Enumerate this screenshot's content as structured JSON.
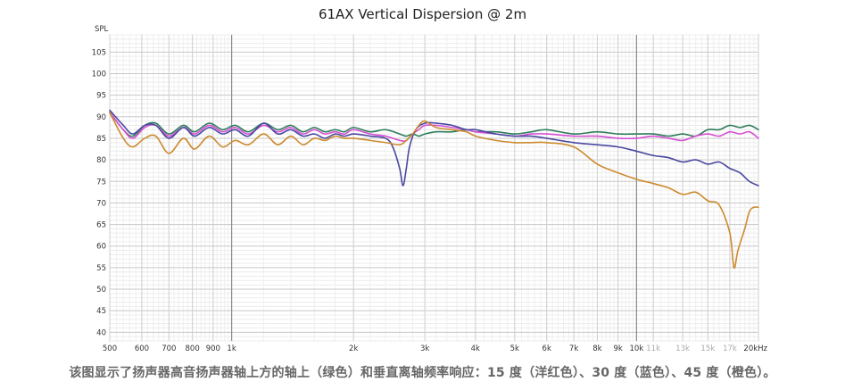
{
  "caption": "该图显示了扬声器高音扬声器轴上方的轴上（绿色）和垂直离轴频率响应：15 度（洋红色）、30 度（蓝色）、45 度（橙色）。",
  "chart_data": {
    "type": "line",
    "title": "61AX Vertical Dispersion @ 2m",
    "ylabel": "SPL",
    "xlabel": "",
    "x_scale": "log",
    "xlim": [
      500,
      20000
    ],
    "ylim": [
      38,
      109
    ],
    "grid": true,
    "y_ticks": [
      40,
      45,
      50,
      55,
      60,
      65,
      70,
      75,
      80,
      85,
      90,
      95,
      100,
      105
    ],
    "x_ticks": [
      {
        "v": 500,
        "label": "500",
        "light": false
      },
      {
        "v": 600,
        "label": "600",
        "light": false
      },
      {
        "v": 700,
        "label": "700",
        "light": false
      },
      {
        "v": 800,
        "label": "800",
        "light": false
      },
      {
        "v": 900,
        "label": "900",
        "light": false
      },
      {
        "v": 1000,
        "label": "1k",
        "light": false
      },
      {
        "v": 2000,
        "label": "2k",
        "light": false
      },
      {
        "v": 3000,
        "label": "3k",
        "light": false
      },
      {
        "v": 4000,
        "label": "4k",
        "light": false
      },
      {
        "v": 5000,
        "label": "5k",
        "light": false
      },
      {
        "v": 6000,
        "label": "6k",
        "light": false
      },
      {
        "v": 7000,
        "label": "7k",
        "light": false
      },
      {
        "v": 8000,
        "label": "8k",
        "light": false
      },
      {
        "v": 9000,
        "label": "9k",
        "light": false
      },
      {
        "v": 10000,
        "label": "10k",
        "light": false
      },
      {
        "v": 11000,
        "label": "11k",
        "light": true
      },
      {
        "v": 13000,
        "label": "13k",
        "light": true
      },
      {
        "v": 15000,
        "label": "15k",
        "light": true
      },
      {
        "v": 17000,
        "label": "17k",
        "light": true
      },
      {
        "v": 20000,
        "label": "20kHz",
        "light": false
      }
    ],
    "series": [
      {
        "color": "#2e7d5b",
        "points": [
          [
            500,
            91
          ],
          [
            540,
            87
          ],
          [
            570,
            85.5
          ],
          [
            610,
            88
          ],
          [
            650,
            88.5
          ],
          [
            700,
            86
          ],
          [
            760,
            88
          ],
          [
            810,
            86.5
          ],
          [
            880,
            88.5
          ],
          [
            950,
            87
          ],
          [
            1020,
            88
          ],
          [
            1100,
            86.5
          ],
          [
            1200,
            88.5
          ],
          [
            1300,
            87
          ],
          [
            1400,
            88
          ],
          [
            1500,
            86.5
          ],
          [
            1600,
            87.5
          ],
          [
            1700,
            86.5
          ],
          [
            1800,
            87
          ],
          [
            1900,
            86.5
          ],
          [
            2000,
            87.5
          ],
          [
            2200,
            86.5
          ],
          [
            2400,
            87
          ],
          [
            2600,
            86
          ],
          [
            2700,
            85.5
          ],
          [
            2800,
            86
          ],
          [
            2900,
            85.5
          ],
          [
            3000,
            86
          ],
          [
            3200,
            86.5
          ],
          [
            3500,
            86.5
          ],
          [
            3800,
            87
          ],
          [
            4000,
            86.5
          ],
          [
            4500,
            86.5
          ],
          [
            5000,
            86
          ],
          [
            5500,
            86.5
          ],
          [
            6000,
            87
          ],
          [
            7000,
            86
          ],
          [
            8000,
            86.5
          ],
          [
            9000,
            86
          ],
          [
            10000,
            86
          ],
          [
            11000,
            86
          ],
          [
            12000,
            85.5
          ],
          [
            13000,
            86
          ],
          [
            14000,
            85.5
          ],
          [
            15000,
            87
          ],
          [
            16000,
            87
          ],
          [
            17000,
            88
          ],
          [
            18000,
            87.5
          ],
          [
            19000,
            88
          ],
          [
            20000,
            87
          ]
        ]
      },
      {
        "color": "#d64fd4",
        "points": [
          [
            500,
            91
          ],
          [
            540,
            87
          ],
          [
            570,
            85
          ],
          [
            610,
            87.5
          ],
          [
            650,
            88
          ],
          [
            700,
            85.5
          ],
          [
            760,
            87.5
          ],
          [
            810,
            86
          ],
          [
            880,
            88
          ],
          [
            950,
            86.5
          ],
          [
            1020,
            87.5
          ],
          [
            1100,
            86
          ],
          [
            1200,
            88
          ],
          [
            1300,
            86.5
          ],
          [
            1400,
            87.5
          ],
          [
            1500,
            86
          ],
          [
            1600,
            87
          ],
          [
            1700,
            86
          ],
          [
            1800,
            86.5
          ],
          [
            1900,
            86
          ],
          [
            2000,
            87
          ],
          [
            2200,
            86
          ],
          [
            2400,
            85.5
          ],
          [
            2600,
            84.5
          ],
          [
            2700,
            84.5
          ],
          [
            2800,
            86
          ],
          [
            2900,
            87
          ],
          [
            3000,
            88
          ],
          [
            3200,
            88
          ],
          [
            3500,
            87.5
          ],
          [
            3800,
            87
          ],
          [
            4000,
            86.5
          ],
          [
            4500,
            86
          ],
          [
            5000,
            85.5
          ],
          [
            5500,
            86
          ],
          [
            6000,
            86
          ],
          [
            7000,
            85.5
          ],
          [
            8000,
            85.5
          ],
          [
            9000,
            85
          ],
          [
            10000,
            85
          ],
          [
            11000,
            85.5
          ],
          [
            12000,
            85
          ],
          [
            13000,
            84.5
          ],
          [
            14000,
            85.5
          ],
          [
            15000,
            86
          ],
          [
            16000,
            85.5
          ],
          [
            17000,
            86.5
          ],
          [
            18000,
            86
          ],
          [
            19000,
            86.5
          ],
          [
            20000,
            85
          ]
        ]
      },
      {
        "color": "#4a48a0",
        "points": [
          [
            500,
            91.5
          ],
          [
            540,
            88
          ],
          [
            570,
            86
          ],
          [
            610,
            88
          ],
          [
            650,
            88
          ],
          [
            700,
            85
          ],
          [
            760,
            87.5
          ],
          [
            810,
            85.5
          ],
          [
            880,
            87.5
          ],
          [
            950,
            86
          ],
          [
            1020,
            87
          ],
          [
            1100,
            85.5
          ],
          [
            1200,
            88.5
          ],
          [
            1300,
            86
          ],
          [
            1400,
            87
          ],
          [
            1500,
            85.5
          ],
          [
            1600,
            86
          ],
          [
            1700,
            85
          ],
          [
            1800,
            86
          ],
          [
            1900,
            85.5
          ],
          [
            2000,
            86
          ],
          [
            2200,
            85.5
          ],
          [
            2400,
            85
          ],
          [
            2500,
            83
          ],
          [
            2600,
            78
          ],
          [
            2650,
            74
          ],
          [
            2700,
            78
          ],
          [
            2750,
            83
          ],
          [
            2850,
            87
          ],
          [
            3000,
            88.5
          ],
          [
            3200,
            88.5
          ],
          [
            3500,
            88
          ],
          [
            3800,
            87
          ],
          [
            4000,
            87
          ],
          [
            4500,
            86
          ],
          [
            5000,
            85.5
          ],
          [
            5500,
            85.5
          ],
          [
            6000,
            85
          ],
          [
            7000,
            84
          ],
          [
            8000,
            83.5
          ],
          [
            9000,
            83
          ],
          [
            10000,
            82
          ],
          [
            11000,
            81
          ],
          [
            12000,
            80.5
          ],
          [
            13000,
            79.5
          ],
          [
            14000,
            80
          ],
          [
            15000,
            79
          ],
          [
            16000,
            79.5
          ],
          [
            17000,
            78
          ],
          [
            18000,
            77
          ],
          [
            19000,
            75
          ],
          [
            20000,
            74
          ]
        ]
      },
      {
        "color": "#cc8a2e",
        "points": [
          [
            500,
            91
          ],
          [
            540,
            85
          ],
          [
            570,
            83
          ],
          [
            610,
            85
          ],
          [
            650,
            85.5
          ],
          [
            700,
            81.5
          ],
          [
            760,
            85
          ],
          [
            810,
            82.5
          ],
          [
            880,
            85.5
          ],
          [
            950,
            83
          ],
          [
            1020,
            84.5
          ],
          [
            1100,
            83.5
          ],
          [
            1200,
            86
          ],
          [
            1300,
            83.5
          ],
          [
            1400,
            85.5
          ],
          [
            1500,
            83.5
          ],
          [
            1600,
            85
          ],
          [
            1700,
            84.5
          ],
          [
            1800,
            85.5
          ],
          [
            1900,
            85
          ],
          [
            2000,
            85
          ],
          [
            2200,
            84.5
          ],
          [
            2400,
            84
          ],
          [
            2600,
            83.5
          ],
          [
            2700,
            84.5
          ],
          [
            2800,
            86
          ],
          [
            2900,
            88
          ],
          [
            3000,
            89
          ],
          [
            3200,
            87.5
          ],
          [
            3500,
            87
          ],
          [
            3800,
            86.5
          ],
          [
            4000,
            85.5
          ],
          [
            4500,
            84.5
          ],
          [
            5000,
            84
          ],
          [
            5500,
            84
          ],
          [
            6000,
            84
          ],
          [
            7000,
            83
          ],
          [
            8000,
            79
          ],
          [
            9000,
            77
          ],
          [
            10000,
            75.5
          ],
          [
            11000,
            74.5
          ],
          [
            12000,
            73.5
          ],
          [
            13000,
            72
          ],
          [
            14000,
            72.5
          ],
          [
            15000,
            70.5
          ],
          [
            16000,
            69.5
          ],
          [
            17000,
            63
          ],
          [
            17400,
            55
          ],
          [
            17800,
            59
          ],
          [
            18500,
            64
          ],
          [
            19000,
            68
          ],
          [
            19500,
            69
          ],
          [
            20000,
            69
          ]
        ]
      }
    ]
  }
}
